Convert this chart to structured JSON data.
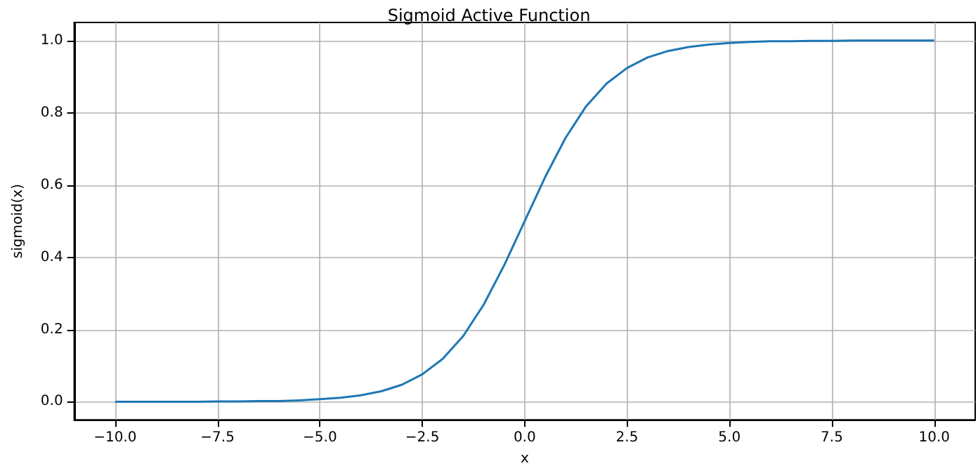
{
  "chart_data": {
    "type": "line",
    "title": "Sigmoid Active Function",
    "xlabel": "x",
    "ylabel": "sigmoid(x)",
    "x": [
      -10,
      -9.5,
      -9,
      -8.5,
      -8,
      -7.5,
      -7,
      -6.5,
      -6,
      -5.5,
      -5,
      -4.5,
      -4,
      -3.5,
      -3,
      -2.5,
      -2,
      -1.5,
      -1,
      -0.5,
      0,
      0.5,
      1,
      1.5,
      2,
      2.5,
      3,
      3.5,
      4,
      4.5,
      5,
      5.5,
      6,
      6.5,
      7,
      7.5,
      8,
      8.5,
      9,
      9.5,
      10
    ],
    "series": [
      {
        "color": "#1f77b4",
        "values": [
          0.0,
          0.0,
          0.0,
          0.0,
          0.0,
          0.001,
          0.001,
          0.002,
          0.002,
          0.004,
          0.007,
          0.011,
          0.018,
          0.029,
          0.047,
          0.076,
          0.119,
          0.182,
          0.269,
          0.378,
          0.5,
          0.622,
          0.731,
          0.818,
          0.881,
          0.924,
          0.953,
          0.971,
          0.982,
          0.989,
          0.993,
          0.996,
          0.998,
          0.998,
          0.999,
          0.999,
          1.0,
          1.0,
          1.0,
          1.0,
          1.0
        ]
      }
    ],
    "xlim": [
      -11,
      11
    ],
    "xticks": [
      {
        "value": -10,
        "label": "−10.0"
      },
      {
        "value": -7.5,
        "label": "−7.5"
      },
      {
        "value": -5,
        "label": "−5.0"
      },
      {
        "value": -2.5,
        "label": "−2.5"
      },
      {
        "value": 0,
        "label": "0.0"
      },
      {
        "value": 2.5,
        "label": "2.5"
      },
      {
        "value": 5,
        "label": "5.0"
      },
      {
        "value": 7.5,
        "label": "7.5"
      },
      {
        "value": 10,
        "label": "10.0"
      }
    ],
    "ylim": [
      -0.05,
      1.05
    ],
    "yticks": [
      {
        "value": 0,
        "label": "0.0"
      },
      {
        "value": 0.2,
        "label": "0.2"
      },
      {
        "value": 0.4,
        "label": "0.4"
      },
      {
        "value": 0.6,
        "label": "0.6"
      },
      {
        "value": 0.8,
        "label": "0.8"
      },
      {
        "value": 1,
        "label": "1.0"
      }
    ],
    "grid": true,
    "marker": "none",
    "line_style": "solid"
  }
}
